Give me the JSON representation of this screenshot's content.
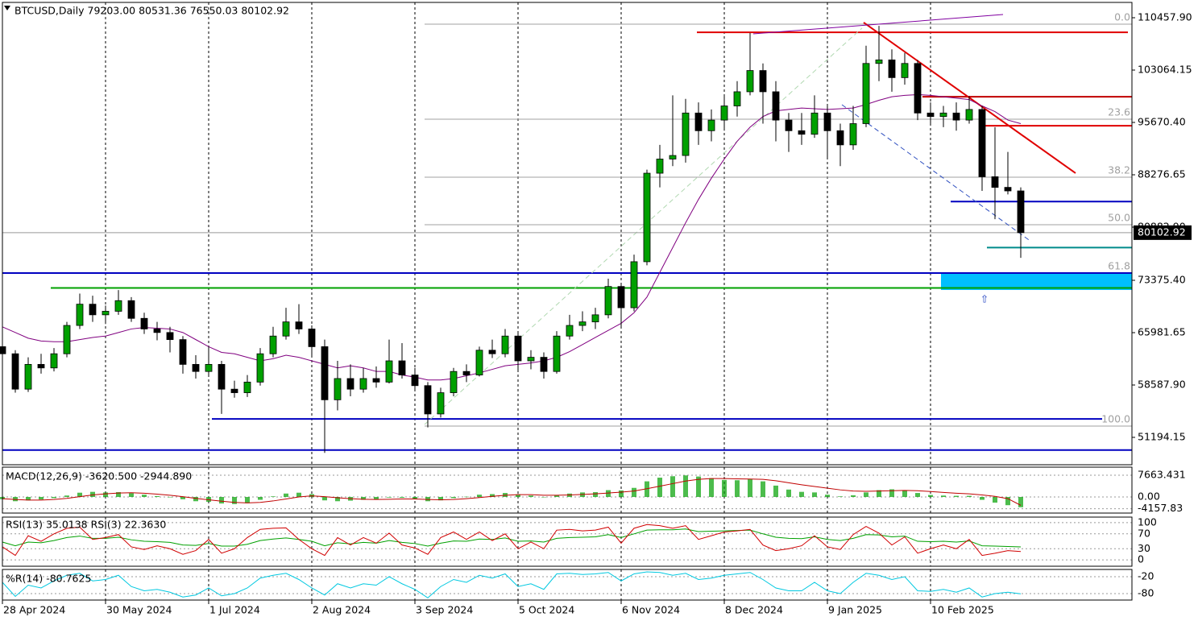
{
  "chart_data": [
    {
      "type": "candlestick",
      "title": "BTCUSD,Daily  79203.00 80531.36 76550.03 80102.92",
      "up_color": "#00a000",
      "down_color": "#000000",
      "x": [
        0,
        4,
        8,
        12,
        16,
        20,
        24,
        28,
        32,
        36,
        40,
        44,
        48,
        52,
        56,
        60,
        64,
        68,
        72,
        76,
        80,
        84,
        88,
        92,
        96,
        100,
        104,
        108,
        112,
        116,
        120,
        124,
        128,
        132,
        136,
        140,
        144,
        148,
        152,
        156,
        160,
        164,
        168,
        172,
        176,
        180,
        184,
        188,
        192,
        196,
        200,
        204,
        208,
        212,
        216,
        220,
        224,
        228,
        232,
        236,
        240,
        244,
        248,
        252,
        256,
        260,
        264,
        268,
        272,
        276,
        280,
        284,
        288,
        292,
        296,
        300,
        304,
        308,
        312,
        316
      ],
      "open": [
        64000,
        63000,
        58000,
        61500,
        61000,
        63000,
        67000,
        70000,
        68500,
        69000,
        70500,
        68000,
        66500,
        66000,
        65000,
        61500,
        60500,
        61500,
        58000,
        57500,
        59000,
        63000,
        65500,
        67500,
        66500,
        64000,
        56500,
        59500,
        58000,
        59500,
        59000,
        62000,
        60000,
        58500,
        54500,
        57500,
        60500,
        60000,
        63500,
        63000,
        65500,
        62000,
        62500,
        60500,
        65500,
        67000,
        67500,
        68500,
        72500,
        69500,
        76000,
        88500,
        90500,
        91000,
        97000,
        94500,
        96000,
        98000,
        100000,
        103000,
        100000,
        96000,
        94500,
        94000,
        97000,
        94500,
        92500,
        95500,
        104000,
        104500,
        102000,
        104000,
        97000,
        96500,
        97000,
        96000,
        97500,
        88000,
        86500,
        86000
      ],
      "high": [
        64800,
        63500,
        62500,
        63000,
        63800,
        67500,
        71500,
        71200,
        69800,
        72000,
        71000,
        68800,
        67500,
        66800,
        65500,
        62800,
        64000,
        62000,
        59200,
        60000,
        63800,
        66800,
        69500,
        70000,
        67000,
        65000,
        62000,
        61500,
        61000,
        61200,
        65000,
        64500,
        61000,
        59000,
        58200,
        61000,
        61500,
        64000,
        65000,
        66500,
        66000,
        63500,
        63200,
        66200,
        68500,
        69000,
        69500,
        73600,
        73000,
        77000,
        89000,
        92500,
        99500,
        99000,
        98500,
        97500,
        99500,
        101500,
        108300,
        104000,
        101500,
        97000,
        97000,
        99500,
        98000,
        95500,
        98000,
        106500,
        109300,
        106000,
        105500,
        104500,
        98500,
        98000,
        98500,
        99400,
        98000,
        95000,
        91500,
        86500
      ],
      "low": [
        62000,
        57500,
        57600,
        60200,
        60500,
        62500,
        66500,
        67500,
        67200,
        68500,
        67500,
        65800,
        64900,
        63200,
        60200,
        59500,
        60000,
        54500,
        56800,
        56900,
        58500,
        62500,
        65000,
        65800,
        62500,
        49000,
        55000,
        57000,
        57500,
        58200,
        58800,
        59500,
        57800,
        52600,
        54000,
        57000,
        59000,
        59800,
        62400,
        62500,
        60500,
        60800,
        59500,
        60200,
        65000,
        66200,
        66500,
        68000,
        66800,
        69000,
        75500,
        86500,
        89500,
        90000,
        92500,
        93000,
        94500,
        96500,
        99500,
        95500,
        93000,
        91500,
        92500,
        93500,
        90500,
        89500,
        91800,
        95000,
        101500,
        100000,
        101000,
        96000,
        95500,
        95000,
        94500,
        95500,
        86000,
        82000,
        85500,
        76550
      ],
      "close": [
        63000,
        58000,
        61500,
        61000,
        63000,
        67000,
        70000,
        68500,
        69000,
        70500,
        68000,
        66500,
        66000,
        65000,
        61500,
        60500,
        61500,
        58000,
        57500,
        59000,
        63000,
        65500,
        67500,
        66500,
        64000,
        56500,
        59500,
        58000,
        59500,
        59000,
        62000,
        60000,
        58500,
        54500,
        57500,
        60500,
        60000,
        63500,
        63000,
        65500,
        62000,
        62500,
        60500,
        65500,
        67000,
        67500,
        68500,
        72500,
        69500,
        76000,
        88500,
        90500,
        91000,
        97000,
        94500,
        96000,
        98000,
        100000,
        103000,
        100000,
        96000,
        94500,
        94000,
        97000,
        94500,
        92500,
        95500,
        104000,
        104500,
        102000,
        104000,
        97000,
        96500,
        97000,
        96000,
        97500,
        88000,
        86500,
        86000,
        80102.92
      ],
      "ma": {
        "color": "#800080",
        "values": [
          66800,
          66000,
          65200,
          64800,
          64700,
          64700,
          65000,
          65300,
          65500,
          66000,
          66500,
          66700,
          66600,
          66500,
          66000,
          65000,
          64000,
          63200,
          63000,
          62500,
          62000,
          62300,
          62800,
          62500,
          62000,
          61500,
          61000,
          61300,
          61000,
          60500,
          60500,
          60000,
          59700,
          59300,
          59300,
          59500,
          59900,
          60300,
          60800,
          61300,
          61500,
          61700,
          62000,
          62500,
          63300,
          64300,
          65300,
          66300,
          67300,
          68800,
          71000,
          74500,
          78000,
          81500,
          84800,
          87800,
          90500,
          93000,
          95000,
          96500,
          97300,
          97500,
          97700,
          97600,
          97500,
          97600,
          97700,
          98200,
          98800,
          99300,
          99500,
          99600,
          99500,
          99300,
          99100,
          98900,
          98000,
          97200,
          96000,
          95500
        ]
      },
      "xlim": [
        0,
        350.5
      ],
      "ylim": [
        47326,
        112619
      ],
      "xticks": [
        {
          "value": 0,
          "label": "28 Apr 2024"
        },
        {
          "value": 32,
          "label": "30 May 2024"
        },
        {
          "value": 64,
          "label": "1 Jul 2024"
        },
        {
          "value": 96,
          "label": "2 Aug 2024"
        },
        {
          "value": 128,
          "label": "3 Sep 2024"
        },
        {
          "value": 160,
          "label": "5 Oct 2024"
        },
        {
          "value": 192,
          "label": "6 Nov 2024"
        },
        {
          "value": 224,
          "label": "8 Dec 2024"
        },
        {
          "value": 256,
          "label": "9 Jan 2025"
        },
        {
          "value": 288,
          "label": "10 Feb 2025"
        }
      ],
      "yticks": [
        {
          "value": 110457.9,
          "label": "110457.90"
        },
        103064.15,
        {
          "value": 95670.4,
          "label": "95670.40"
        },
        88276.65,
        {
          "value": 80882.9,
          "label": "80882.90"
        },
        {
          "value": 73375.4,
          "label": "73375.40"
        },
        65981.65,
        {
          "value": 58587.9,
          "label": "58587.90"
        },
        51194.15
      ],
      "current_price": 80102.92,
      "fib_levels": [
        {
          "value": 109548,
          "label": "0.0"
        },
        {
          "value": 96125,
          "label": "23.6"
        },
        {
          "value": 87935,
          "label": "38.2"
        },
        {
          "value": 81224,
          "label": "50.0"
        },
        {
          "value": 74399,
          "label": "61.8"
        },
        {
          "value": 52786,
          "label": "100.0"
        }
      ],
      "hlines": [
        {
          "price": 108400,
          "from": 215.5,
          "to": 349.25,
          "color": "#e00000"
        },
        {
          "price": 74400,
          "from": 0,
          "to": 350.5,
          "color": "#0000c0"
        },
        {
          "price": 72300,
          "from": 15,
          "to": 350.5,
          "color": "#00a000"
        },
        {
          "price": 53800,
          "from": 65,
          "to": 341.25,
          "color": "#0000c0"
        },
        {
          "price": 49400,
          "from": 0,
          "to": 350.5,
          "color": "#0000c0"
        },
        {
          "price": 84500,
          "from": 294.25,
          "to": 350.5,
          "color": "#0000c0"
        },
        {
          "price": 78000,
          "from": 305.5,
          "to": 350.5,
          "color": "#008b8b"
        },
        {
          "price": 99300,
          "from": 285.5,
          "to": 350.5,
          "color": "#c00000"
        },
        {
          "price": 95200,
          "from": 303.75,
          "to": 350.5,
          "color": "#e00000"
        }
      ],
      "trendlines": [
        {
          "from": [
            267.25,
            109776
          ],
          "to": [
            333,
            88505
          ],
          "color": "#e00000"
        },
        {
          "from": [
            233,
            108183
          ],
          "to": [
            310.5,
            110913
          ],
          "color": "#8000a0"
        },
        {
          "from": [
            260.5,
            98172
          ],
          "to": [
            319.25,
            78835
          ],
          "color": "#3050c0"
        },
        {
          "from": [
            131,
            53013
          ],
          "to": [
            266.75,
            109000
          ],
          "color": "#b0d8b0"
        }
      ],
      "zone": {
        "from": [
          291.25,
          74285
        ],
        "to": [
          350.5,
          72009
        ],
        "color": "#00bfff"
      }
    },
    {
      "type": "macd",
      "label": "MACD(12,26,9) -3620.500 -2944.890",
      "ylim": [
        -5676,
        10500
      ],
      "yticks": [
        7663.431,
        {
          "value": 0,
          "label": "0.00"
        },
        -4157.83
      ],
      "series": [
        {
          "style": "bars",
          "color": "#00a000",
          "values": [
            -800,
            -1500,
            -1200,
            -900,
            -400,
            500,
            1500,
            1800,
            1600,
            1700,
            1300,
            800,
            300,
            -100,
            -800,
            -1500,
            -1700,
            -2300,
            -2500,
            -2200,
            -1000,
            200,
            1200,
            1500,
            1000,
            -1200,
            -1500,
            -1300,
            -1000,
            -900,
            -200,
            -300,
            -800,
            -1500,
            -1200,
            -400,
            100,
            800,
            1000,
            1400,
            900,
            500,
            0,
            600,
            1200,
            1600,
            1700,
            2400,
            2300,
            3200,
            5500,
            6800,
            7300,
            7600,
            7200,
            6600,
            6000,
            5900,
            6300,
            5500,
            4000,
            2600,
            1800,
            1600,
            800,
            200,
            600,
            1600,
            2400,
            2700,
            2400,
            1400,
            700,
            500,
            400,
            400,
            -1000,
            -2000,
            -2900,
            -3620.5
          ]
        },
        {
          "style": "line",
          "color": "#c00000",
          "values": [
            -600,
            -900,
            -1100,
            -1100,
            -900,
            -500,
            100,
            700,
            1100,
            1400,
            1500,
            1300,
            1000,
            600,
            100,
            -500,
            -1000,
            -1500,
            -1900,
            -2100,
            -1900,
            -1400,
            -700,
            0,
            400,
            100,
            -300,
            -600,
            -800,
            -900,
            -800,
            -700,
            -700,
            -900,
            -1000,
            -900,
            -600,
            -200,
            200,
            600,
            800,
            800,
            600,
            600,
            700,
            900,
            1100,
            1400,
            1700,
            2100,
            2900,
            3800,
            4700,
            5600,
            6200,
            6500,
            6500,
            6400,
            6300,
            6200,
            5700,
            5000,
            4300,
            3700,
            3100,
            2500,
            2100,
            2000,
            2100,
            2200,
            2300,
            2200,
            1900,
            1600,
            1300,
            1100,
            700,
            200,
            -600,
            -2944.89
          ]
        }
      ]
    },
    {
      "type": "rsi",
      "label": "RSI(13) 35.0138  RSI(3) 22.3630",
      "ylim": [
        -17,
        115
      ],
      "yticks": [
        100,
        70,
        30,
        0
      ],
      "series": [
        {
          "style": "line",
          "color": "#00a000",
          "values": [
            48,
            38,
            48,
            46,
            52,
            60,
            64,
            58,
            58,
            61,
            54,
            50,
            49,
            47,
            40,
            39,
            44,
            37,
            37,
            42,
            52,
            56,
            59,
            55,
            50,
            38,
            46,
            43,
            47,
            45,
            52,
            47,
            44,
            37,
            45,
            51,
            50,
            56,
            55,
            59,
            50,
            51,
            48,
            58,
            60,
            61,
            62,
            68,
            60,
            70,
            80,
            81,
            81,
            83,
            76,
            77,
            78,
            79,
            80,
            70,
            61,
            58,
            57,
            62,
            55,
            52,
            58,
            68,
            67,
            62,
            64,
            50,
            49,
            50,
            48,
            51,
            38,
            37,
            36,
            35.0138
          ]
        },
        {
          "style": "line",
          "color": "#d00000",
          "values": [
            35,
            12,
            65,
            50,
            70,
            85,
            88,
            55,
            60,
            68,
            35,
            28,
            38,
            30,
            15,
            25,
            55,
            18,
            30,
            60,
            82,
            85,
            86,
            55,
            30,
            12,
            60,
            40,
            60,
            45,
            72,
            40,
            32,
            15,
            60,
            75,
            55,
            75,
            52,
            70,
            30,
            48,
            30,
            80,
            82,
            78,
            80,
            88,
            45,
            85,
            95,
            92,
            85,
            92,
            55,
            65,
            75,
            78,
            82,
            40,
            25,
            30,
            38,
            65,
            35,
            28,
            68,
            90,
            72,
            40,
            62,
            18,
            30,
            40,
            30,
            55,
            12,
            18,
            25,
            22.363
          ]
        }
      ]
    },
    {
      "type": "wpr",
      "label": "%R(14) -80.7625",
      "ylim": [
        -102.9,
        5.7
      ],
      "yticks": [
        -20,
        -80
      ],
      "series": [
        {
          "style": "line",
          "color": "#00c8e0",
          "values": [
            -40,
            -90,
            -50,
            -60,
            -35,
            -15,
            -8,
            -35,
            -30,
            -15,
            -55,
            -70,
            -65,
            -75,
            -92,
            -85,
            -60,
            -88,
            -80,
            -60,
            -25,
            -15,
            -8,
            -30,
            -60,
            -85,
            -45,
            -60,
            -45,
            -50,
            -20,
            -45,
            -65,
            -95,
            -55,
            -30,
            -40,
            -15,
            -25,
            -10,
            -55,
            -45,
            -65,
            -10,
            -8,
            -12,
            -10,
            -5,
            -35,
            -10,
            -3,
            -5,
            -15,
            -8,
            -30,
            -25,
            -15,
            -10,
            -5,
            -30,
            -60,
            -70,
            -70,
            -40,
            -70,
            -80,
            -40,
            -8,
            -15,
            -30,
            -20,
            -70,
            -72,
            -65,
            -75,
            -60,
            -92,
            -80,
            -75,
            -80.7625
          ]
        }
      ]
    }
  ]
}
